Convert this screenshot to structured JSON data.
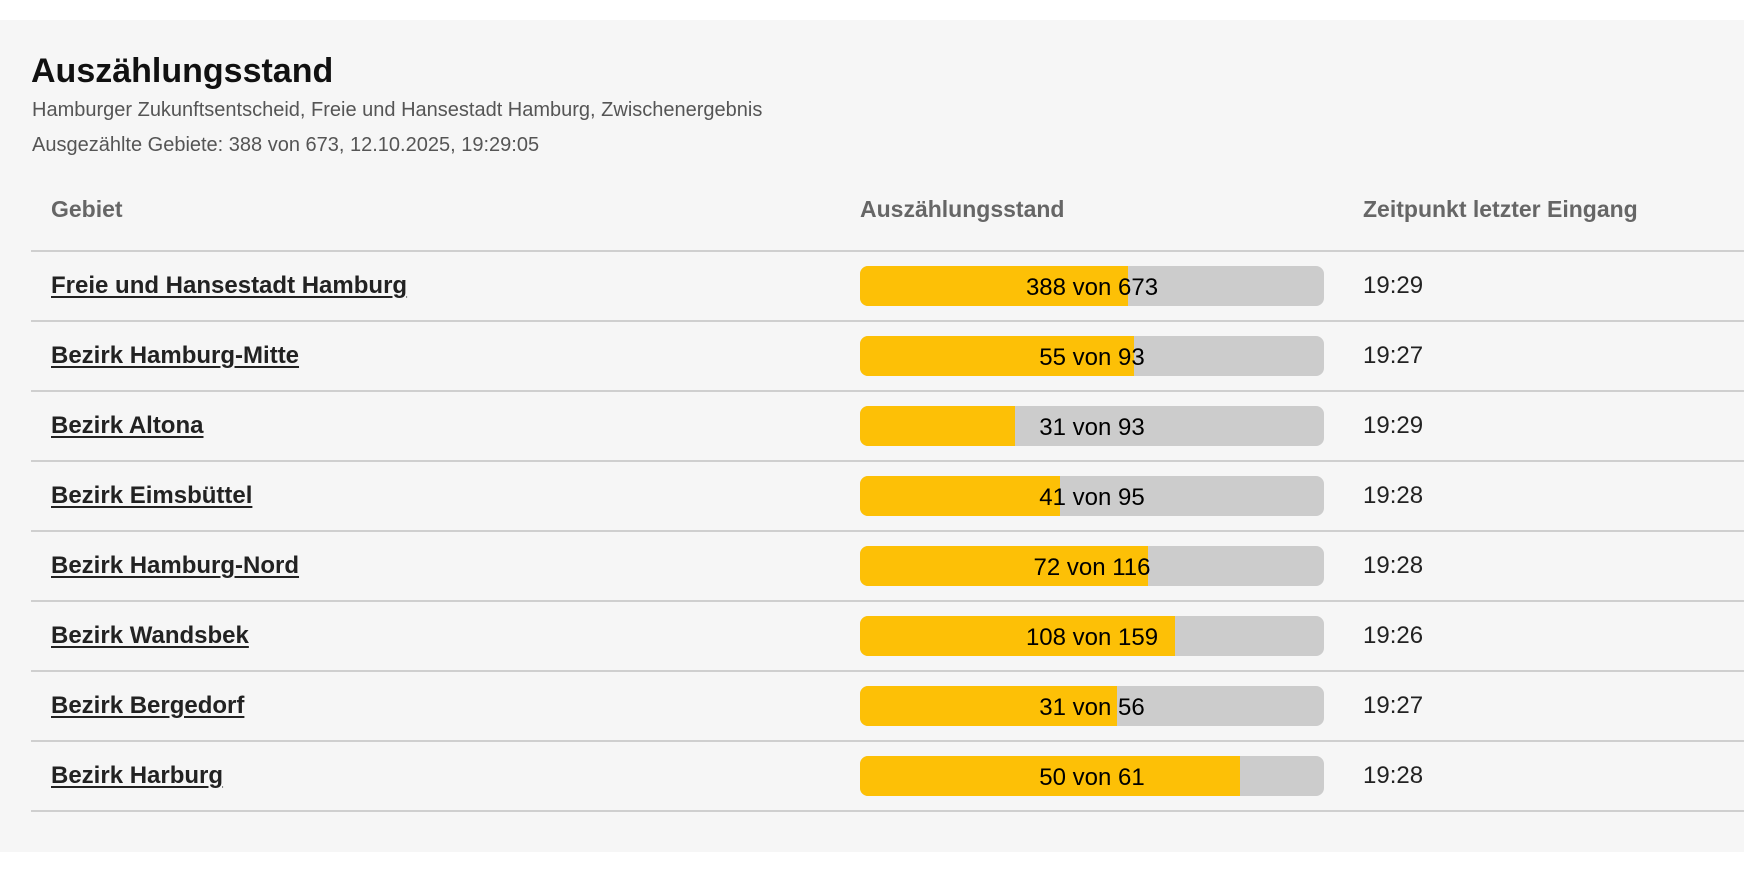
{
  "title": "Auszählungsstand",
  "subtitle": "Hamburger Zukunftsentscheid, Freie und Hansestadt Hamburg, Zwischenergebnis",
  "status_line": "Ausgezählte Gebiete: 388 von 673, 12.10.2025, 19:29:05",
  "colors": {
    "fill": "#fdc006",
    "track": "#cccccc"
  },
  "columns": [
    "Gebiet",
    "Auszählungsstand",
    "Zeitpunkt letzter Eingang"
  ],
  "rows": [
    {
      "name": "Freie und Hansestadt Hamburg",
      "counted": 388,
      "total": 673,
      "label": "388 von 673",
      "time": "19:29"
    },
    {
      "name": "Bezirk Hamburg-Mitte",
      "counted": 55,
      "total": 93,
      "label": "55 von 93",
      "time": "19:27"
    },
    {
      "name": "Bezirk Altona",
      "counted": 31,
      "total": 93,
      "label": "31 von 93",
      "time": "19:29"
    },
    {
      "name": "Bezirk Eimsbüttel",
      "counted": 41,
      "total": 95,
      "label": "41 von 95",
      "time": "19:28"
    },
    {
      "name": "Bezirk Hamburg-Nord",
      "counted": 72,
      "total": 116,
      "label": "72 von 116",
      "time": "19:28"
    },
    {
      "name": "Bezirk Wandsbek",
      "counted": 108,
      "total": 159,
      "label": "108 von 159",
      "time": "19:26"
    },
    {
      "name": "Bezirk Bergedorf",
      "counted": 31,
      "total": 56,
      "label": "31 von 56",
      "time": "19:27"
    },
    {
      "name": "Bezirk Harburg",
      "counted": 50,
      "total": 61,
      "label": "50 von 61",
      "time": "19:28"
    }
  ]
}
